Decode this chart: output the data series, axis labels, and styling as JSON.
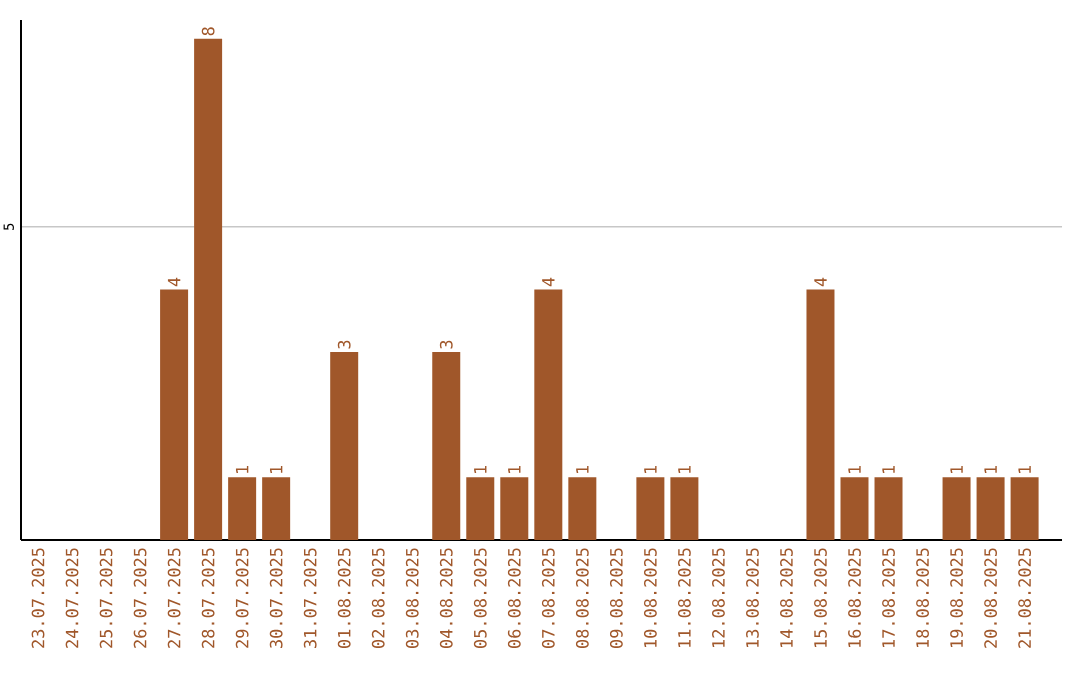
{
  "chart_data": {
    "type": "bar",
    "color": "#a0572a",
    "categories": [
      "23.07.2025",
      "24.07.2025",
      "25.07.2025",
      "26.07.2025",
      "27.07.2025",
      "28.07.2025",
      "29.07.2025",
      "30.07.2025",
      "31.07.2025",
      "01.08.2025",
      "02.08.2025",
      "03.08.2025",
      "04.08.2025",
      "05.08.2025",
      "06.08.2025",
      "07.08.2025",
      "08.08.2025",
      "09.08.2025",
      "10.08.2025",
      "11.08.2025",
      "12.08.2025",
      "13.08.2025",
      "14.08.2025",
      "15.08.2025",
      "16.08.2025",
      "17.08.2025",
      "18.08.2025",
      "19.08.2025",
      "20.08.2025",
      "21.08.2025"
    ],
    "values": [
      null,
      null,
      null,
      null,
      4,
      8,
      1,
      1,
      null,
      3,
      null,
      null,
      3,
      1,
      1,
      4,
      1,
      null,
      1,
      1,
      null,
      null,
      null,
      4,
      1,
      1,
      null,
      1,
      1,
      1
    ],
    "data_labels": true,
    "ylim": [
      0,
      8.3
    ],
    "yticks": [
      5
    ],
    "grid": "y"
  }
}
